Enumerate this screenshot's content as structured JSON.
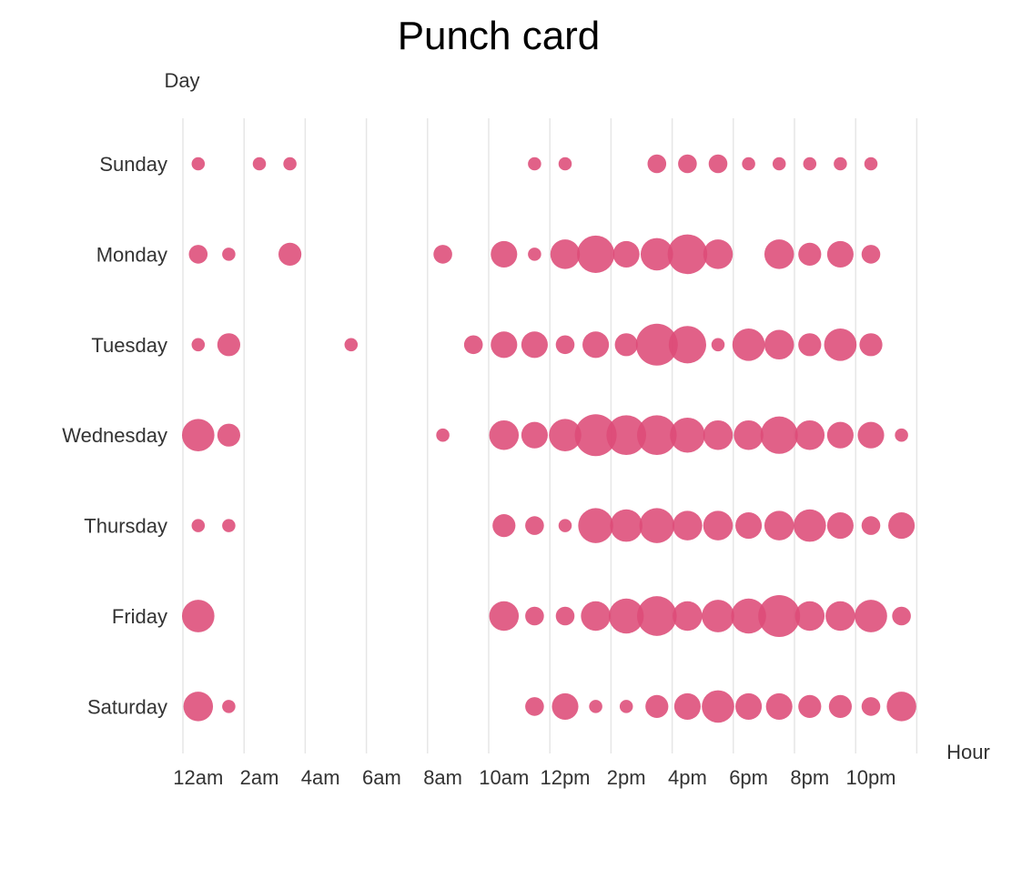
{
  "chart_data": {
    "type": "scatter",
    "title": "Punch card",
    "xlabel": "Hour",
    "ylabel": "Day",
    "grid": true,
    "color": "#dd4b77",
    "x_ticks": [
      "12am",
      "2am",
      "4am",
      "6am",
      "8am",
      "10am",
      "12pm",
      "2pm",
      "4pm",
      "6pm",
      "8pm",
      "10pm"
    ],
    "days": [
      "Sunday",
      "Monday",
      "Tuesday",
      "Wednesday",
      "Thursday",
      "Friday",
      "Saturday"
    ],
    "hours_per_day": 24,
    "size_range": [
      0,
      10
    ],
    "values": [
      [
        1,
        0,
        1,
        1,
        0,
        0,
        0,
        0,
        0,
        0,
        0,
        1,
        1,
        0,
        0,
        2,
        2,
        2,
        1,
        1,
        1,
        1,
        1,
        0
      ],
      [
        2,
        1,
        0,
        3,
        0,
        0,
        0,
        0,
        2,
        0,
        4,
        1,
        5,
        8,
        4,
        6,
        9,
        5,
        0,
        5,
        3,
        4,
        2,
        0
      ],
      [
        1,
        3,
        0,
        0,
        0,
        1,
        0,
        0,
        0,
        2,
        4,
        4,
        2,
        4,
        3,
        10,
        8,
        1,
        6,
        5,
        3,
        6,
        3,
        0
      ],
      [
        6,
        3,
        0,
        0,
        0,
        0,
        0,
        0,
        1,
        0,
        5,
        4,
        6,
        10,
        9,
        9,
        7,
        5,
        5,
        8,
        5,
        4,
        4,
        1
      ],
      [
        1,
        1,
        0,
        0,
        0,
        0,
        0,
        0,
        0,
        0,
        3,
        2,
        1,
        7,
        6,
        7,
        5,
        5,
        4,
        5,
        6,
        4,
        2,
        4
      ],
      [
        6,
        0,
        0,
        0,
        0,
        0,
        0,
        0,
        0,
        0,
        5,
        2,
        2,
        5,
        7,
        9,
        5,
        6,
        7,
        10,
        5,
        5,
        6,
        2
      ],
      [
        5,
        1,
        0,
        0,
        0,
        0,
        0,
        0,
        0,
        0,
        0,
        2,
        4,
        1,
        1,
        3,
        4,
        6,
        4,
        4,
        3,
        3,
        2,
        5
      ]
    ]
  }
}
